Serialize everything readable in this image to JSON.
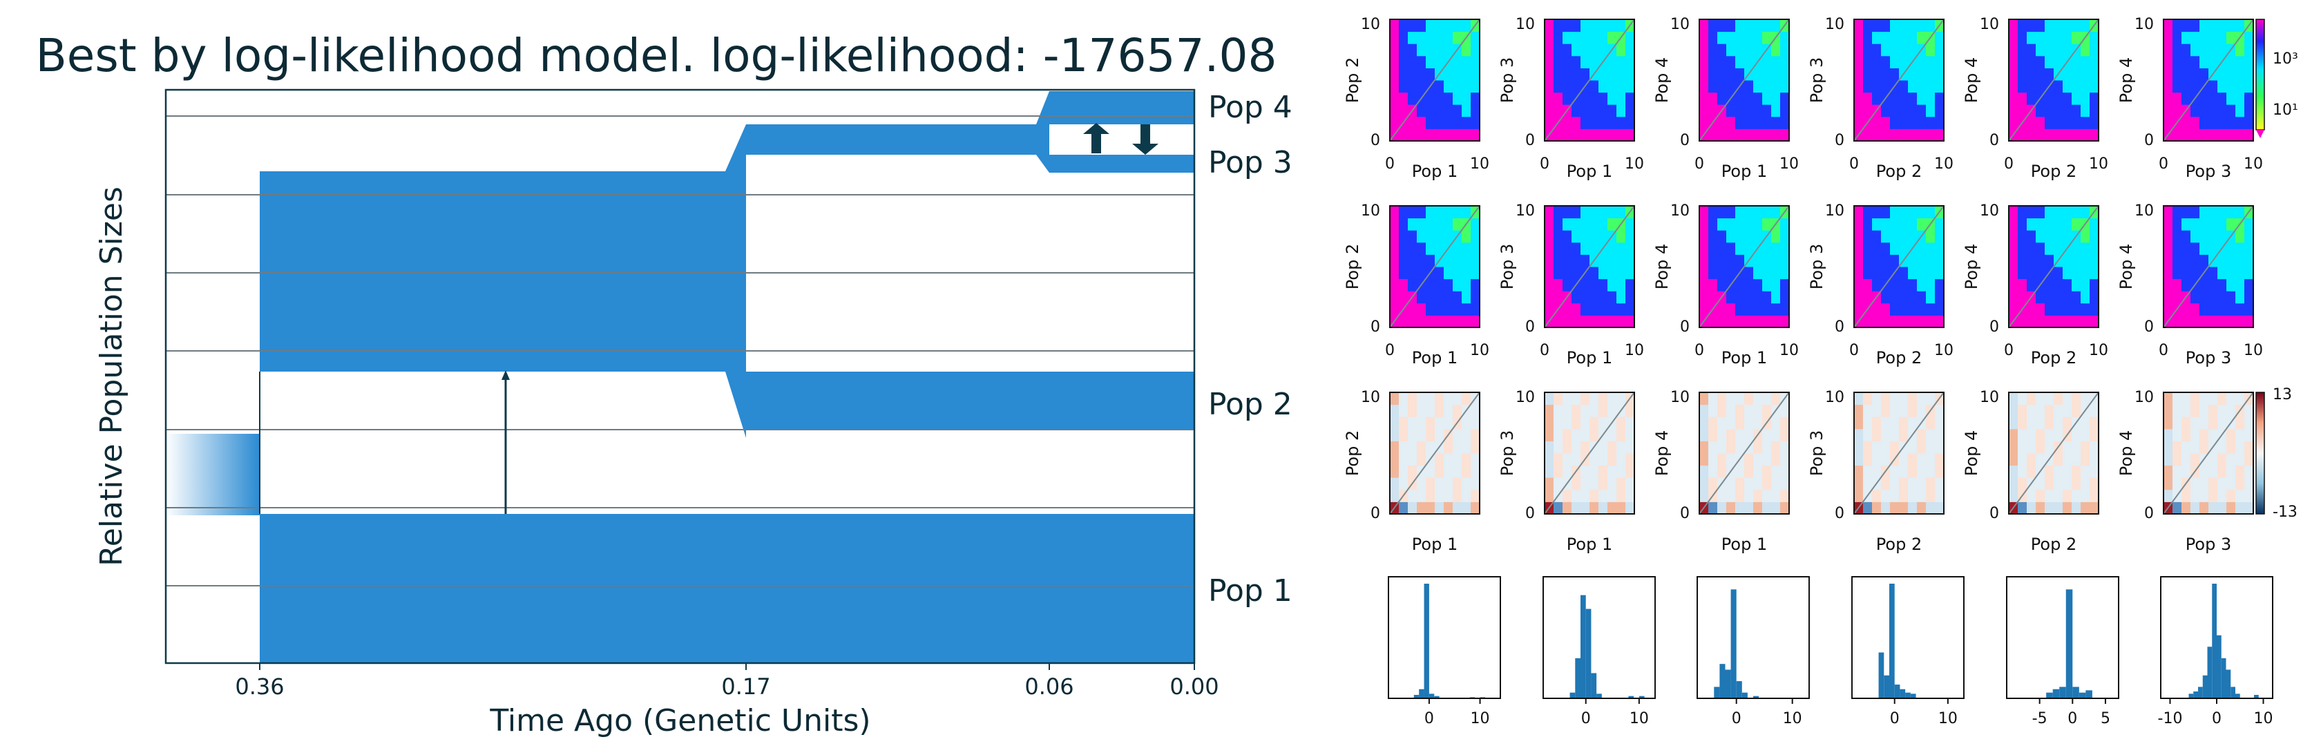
{
  "title": "Best by log-likelihood model. log-likelihood: -17657.08",
  "colors": {
    "pop_fill": "#2a8ad2",
    "frame": "#0d3a4a",
    "gridline": "#6f7b80",
    "text": "#0d2a35"
  },
  "chart_data": [
    {
      "type": "area",
      "name": "demographic-model",
      "ylabel": "Relative Population Sizes",
      "xlabel": "Time Ago (Genetic Units)",
      "x_ticks": [
        "0.36",
        "0.17",
        "0.06",
        "0.00"
      ],
      "populations": [
        "Pop 1",
        "Pop 2",
        "Pop 3",
        "Pop 4"
      ],
      "split_times": [
        0.36,
        0.17,
        0.06
      ],
      "migration": [
        "Pop 1 to Pop 2",
        "Pop 3 to Pop 4",
        "Pop 4 to Pop 3"
      ]
    },
    {
      "type": "heatmap",
      "name": "sfs-model-row",
      "colorbar_ticks": [
        "10³",
        "10¹"
      ],
      "panels": [
        {
          "xlabel": "Pop 1",
          "ylabel": "Pop 2",
          "xticks": [
            "0",
            "10"
          ],
          "yticks": [
            "0",
            "10"
          ]
        },
        {
          "xlabel": "Pop 1",
          "ylabel": "Pop 3",
          "xticks": [
            "0",
            "10"
          ],
          "yticks": [
            "0",
            "10"
          ]
        },
        {
          "xlabel": "Pop 1",
          "ylabel": "Pop 4",
          "xticks": [
            "0",
            "10"
          ],
          "yticks": [
            "0",
            "10"
          ]
        },
        {
          "xlabel": "Pop 2",
          "ylabel": "Pop 3",
          "xticks": [
            "0",
            "10"
          ],
          "yticks": [
            "0",
            "10"
          ]
        },
        {
          "xlabel": "Pop 2",
          "ylabel": "Pop 4",
          "xticks": [
            "0",
            "10"
          ],
          "yticks": [
            "0",
            "10"
          ]
        },
        {
          "xlabel": "Pop 3",
          "ylabel": "Pop 4",
          "xticks": [
            "0",
            "10"
          ],
          "yticks": [
            "0",
            "10"
          ]
        }
      ]
    },
    {
      "type": "heatmap",
      "name": "sfs-data-row",
      "panels": [
        {
          "xlabel": "Pop 1",
          "ylabel": "Pop 2",
          "xticks": [
            "0",
            "10"
          ],
          "yticks": [
            "0",
            "10"
          ]
        },
        {
          "xlabel": "Pop 1",
          "ylabel": "Pop 3",
          "xticks": [
            "0",
            "10"
          ],
          "yticks": [
            "0",
            "10"
          ]
        },
        {
          "xlabel": "Pop 1",
          "ylabel": "Pop 4",
          "xticks": [
            "0",
            "10"
          ],
          "yticks": [
            "0",
            "10"
          ]
        },
        {
          "xlabel": "Pop 2",
          "ylabel": "Pop 3",
          "xticks": [
            "0",
            "10"
          ],
          "yticks": [
            "0",
            "10"
          ]
        },
        {
          "xlabel": "Pop 2",
          "ylabel": "Pop 4",
          "xticks": [
            "0",
            "10"
          ],
          "yticks": [
            "0",
            "10"
          ]
        },
        {
          "xlabel": "Pop 3",
          "ylabel": "Pop 4",
          "xticks": [
            "0",
            "10"
          ],
          "yticks": [
            "0",
            "10"
          ]
        }
      ]
    },
    {
      "type": "heatmap",
      "name": "residuals-row",
      "colorbar_ticks": [
        "13",
        "-13"
      ],
      "panels": [
        {
          "xlabel": "Pop 1",
          "ylabel": "Pop 2",
          "xticks": [],
          "yticks": [
            "0",
            "10"
          ]
        },
        {
          "xlabel": "Pop 1",
          "ylabel": "Pop 3",
          "xticks": [],
          "yticks": [
            "0",
            "10"
          ]
        },
        {
          "xlabel": "Pop 1",
          "ylabel": "Pop 4",
          "xticks": [],
          "yticks": [
            "0",
            "10"
          ]
        },
        {
          "xlabel": "Pop 2",
          "ylabel": "Pop 3",
          "xticks": [],
          "yticks": [
            "0",
            "10"
          ]
        },
        {
          "xlabel": "Pop 2",
          "ylabel": "Pop 4",
          "xticks": [],
          "yticks": [
            "0",
            "10"
          ]
        },
        {
          "xlabel": "Pop 3",
          "ylabel": "Pop 4",
          "xticks": [],
          "yticks": [
            "0",
            "10"
          ]
        }
      ]
    },
    {
      "type": "bar",
      "name": "residual-histograms",
      "panels": [
        {
          "xticks": [
            "0",
            "10"
          ],
          "xlim": [
            -8,
            14
          ],
          "values": [
            {
              "x": -2.5,
              "h": 0.03
            },
            {
              "x": -1.5,
              "h": 0.08
            },
            {
              "x": -0.5,
              "h": 1.0
            },
            {
              "x": 0.5,
              "h": 0.04
            },
            {
              "x": 1.5,
              "h": 0.02
            },
            {
              "x": 8.5,
              "h": 0.01
            },
            {
              "x": 10.5,
              "h": 0.01
            }
          ]
        },
        {
          "xticks": [
            "0",
            "10"
          ],
          "xlim": [
            -8,
            13
          ],
          "values": [
            {
              "x": -2.5,
              "h": 0.05
            },
            {
              "x": -1.5,
              "h": 0.35
            },
            {
              "x": -0.5,
              "h": 0.9
            },
            {
              "x": 0.5,
              "h": 0.78
            },
            {
              "x": 1.5,
              "h": 0.22
            },
            {
              "x": 2.5,
              "h": 0.04
            },
            {
              "x": 8.5,
              "h": 0.02
            },
            {
              "x": 10.5,
              "h": 0.02
            }
          ]
        },
        {
          "xticks": [
            "0",
            "10"
          ],
          "xlim": [
            -7,
            13
          ],
          "values": [
            {
              "x": -3.5,
              "h": 0.1
            },
            {
              "x": -2.5,
              "h": 0.3
            },
            {
              "x": -1.5,
              "h": 0.25
            },
            {
              "x": -0.5,
              "h": 0.95
            },
            {
              "x": 0.5,
              "h": 0.15
            },
            {
              "x": 1.5,
              "h": 0.05
            },
            {
              "x": 3.5,
              "h": 0.02
            }
          ]
        },
        {
          "xticks": [
            "0",
            "10"
          ],
          "xlim": [
            -8,
            13
          ],
          "values": [
            {
              "x": -2.5,
              "h": 0.4
            },
            {
              "x": -1.5,
              "h": 0.2
            },
            {
              "x": -0.5,
              "h": 1.0
            },
            {
              "x": 0.5,
              "h": 0.12
            },
            {
              "x": 1.5,
              "h": 0.08
            },
            {
              "x": 2.5,
              "h": 0.05
            },
            {
              "x": 3.5,
              "h": 0.04
            }
          ]
        },
        {
          "xticks": [
            "-5",
            "0",
            "5"
          ],
          "xlim": [
            -10,
            7
          ],
          "values": [
            {
              "x": -3.5,
              "h": 0.05
            },
            {
              "x": -2.5,
              "h": 0.08
            },
            {
              "x": -1.5,
              "h": 0.1
            },
            {
              "x": -0.5,
              "h": 0.95
            },
            {
              "x": 0.5,
              "h": 0.1
            },
            {
              "x": 1.5,
              "h": 0.05
            },
            {
              "x": 2.5,
              "h": 0.07
            }
          ]
        },
        {
          "xticks": [
            "-10",
            "0",
            "10"
          ],
          "xlim": [
            -12,
            12
          ],
          "values": [
            {
              "x": -5.5,
              "h": 0.04
            },
            {
              "x": -4.5,
              "h": 0.06
            },
            {
              "x": -3.5,
              "h": 0.1
            },
            {
              "x": -2.5,
              "h": 0.2
            },
            {
              "x": -1.5,
              "h": 0.45
            },
            {
              "x": -0.5,
              "h": 1.0
            },
            {
              "x": 0.5,
              "h": 0.55
            },
            {
              "x": 1.5,
              "h": 0.35
            },
            {
              "x": 2.5,
              "h": 0.25
            },
            {
              "x": 3.5,
              "h": 0.1
            },
            {
              "x": 4.5,
              "h": 0.04
            },
            {
              "x": 8.5,
              "h": 0.03
            }
          ]
        }
      ]
    }
  ]
}
